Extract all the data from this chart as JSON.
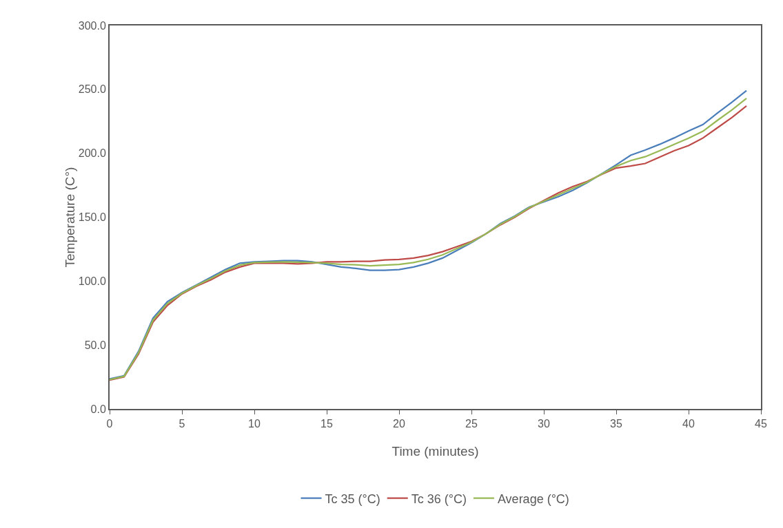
{
  "chart_data": {
    "type": "line",
    "xlabel": "Time (minutes)",
    "ylabel": "Temperature (C°)",
    "x": [
      0,
      1,
      2,
      3,
      4,
      5,
      6,
      7,
      8,
      9,
      10,
      11,
      12,
      13,
      14,
      15,
      16,
      17,
      18,
      19,
      20,
      21,
      22,
      23,
      24,
      25,
      26,
      27,
      28,
      29,
      30,
      31,
      32,
      33,
      34,
      35,
      36,
      37,
      38,
      39,
      40,
      41,
      42,
      43,
      44
    ],
    "series": [
      {
        "name": "Tc 35 (°C)",
        "color": "#4a7ebb",
        "values": [
          23.5,
          26,
          45,
          71,
          84,
          91,
          97,
          103,
          109,
          114,
          115,
          115.5,
          116,
          116,
          115,
          113,
          111,
          110,
          108.5,
          108.5,
          109,
          111,
          114,
          118,
          124,
          130,
          137,
          145,
          151,
          158,
          162,
          166,
          171,
          177,
          184,
          191,
          198.5,
          202.5,
          207,
          212,
          217.5,
          222.5,
          231.5,
          240,
          249
        ]
      },
      {
        "name": "Tc 36 (°C)",
        "color": "#be4b48",
        "values": [
          22.5,
          25,
          43,
          68,
          81,
          90,
          96,
          101,
          107,
          111,
          114,
          114,
          114,
          113.5,
          114,
          115,
          115,
          115.5,
          115.5,
          116.5,
          117,
          118,
          120,
          123,
          127,
          131,
          137,
          144,
          150,
          157,
          163,
          169,
          174,
          178,
          183.5,
          188.5,
          190,
          192,
          197,
          202,
          206,
          212,
          220,
          228,
          237
        ]
      },
      {
        "name": "Average (°C)",
        "color": "#98b954",
        "values": [
          23,
          25.5,
          44,
          69.5,
          82.5,
          90.5,
          96.5,
          102,
          108,
          112.5,
          114.5,
          114.8,
          115,
          114.8,
          114.5,
          114,
          113,
          112.8,
          112,
          112.5,
          113,
          114.5,
          117,
          120.5,
          125.5,
          130.5,
          137,
          144.5,
          150.5,
          157.5,
          162.5,
          167.5,
          172.5,
          177.5,
          183.8,
          189.8,
          194.3,
          197.3,
          202,
          207,
          211.8,
          217.3,
          225.8,
          234,
          243
        ]
      }
    ],
    "xlim": [
      0,
      45
    ],
    "xticks": [
      0,
      5,
      10,
      15,
      20,
      25,
      30,
      35,
      40,
      45
    ],
    "ylim": [
      0,
      300
    ],
    "yticks": [
      {
        "value": 0,
        "label": "0.0"
      },
      {
        "value": 50,
        "label": "50.0"
      },
      {
        "value": 100,
        "label": "100.0"
      },
      {
        "value": 150,
        "label": "150.0"
      },
      {
        "value": 200,
        "label": "200.0"
      },
      {
        "value": 250,
        "label": "250.0"
      },
      {
        "value": 300,
        "label": "300.0"
      }
    ],
    "grid": false,
    "legend": "bottom",
    "marker": "none",
    "line_style": "solid"
  }
}
